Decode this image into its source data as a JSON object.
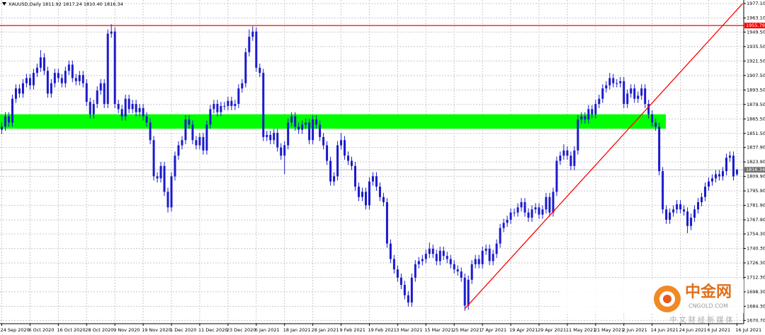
{
  "chart_data": {
    "type": "candlestick",
    "title": "XAUUSD,Daily",
    "quote": "1811.92 1817.24 1810.40 1816.34",
    "color": "#1a1acd",
    "grid": true,
    "ylim": [
      1667.5,
      1980.5
    ],
    "yticks": [
      {
        "value": 1977.1,
        "label": "1977.10"
      },
      {
        "value": 1963.1,
        "label": "1963.10"
      },
      {
        "value": 1949.5,
        "label": "1949.50"
      },
      {
        "value": 1935.5,
        "label": "1935.50"
      },
      {
        "value": 1921.5,
        "label": "1921.50"
      },
      {
        "value": 1907.5,
        "label": "1907.50"
      },
      {
        "value": 1893.5,
        "label": "1893.50"
      },
      {
        "value": 1879.5,
        "label": "1879.50"
      },
      {
        "value": 1865.5,
        "label": "1865.50"
      },
      {
        "value": 1851.5,
        "label": "1851.50"
      },
      {
        "value": 1837.9,
        "label": "1837.90"
      },
      {
        "value": 1823.9,
        "label": "1823.90"
      },
      {
        "value": 1809.9,
        "label": "1809.90"
      },
      {
        "value": 1795.9,
        "label": "1795.90"
      },
      {
        "value": 1781.9,
        "label": "1781.90"
      },
      {
        "value": 1767.9,
        "label": "1767.90"
      },
      {
        "value": 1754.3,
        "label": "1754.30"
      },
      {
        "value": 1740.3,
        "label": "1740.30"
      },
      {
        "value": 1726.3,
        "label": "1726.30"
      },
      {
        "value": 1712.3,
        "label": "1712.30"
      },
      {
        "value": 1698.3,
        "label": "1698.30"
      },
      {
        "value": 1684.3,
        "label": "1684.30"
      },
      {
        "value": 1670.7,
        "label": "1670.70"
      }
    ],
    "categories": [
      "24 Sep 2020",
      null,
      null,
      null,
      null,
      null,
      null,
      null,
      "6 Oct 2020",
      null,
      null,
      null,
      null,
      null,
      null,
      null,
      "16 Oct 2020",
      null,
      null,
      null,
      null,
      null,
      null,
      null,
      "28 Oct 2020",
      null,
      null,
      null,
      null,
      null,
      null,
      null,
      "9 Nov 2020",
      null,
      null,
      null,
      null,
      null,
      null,
      null,
      "19 Nov 2020",
      null,
      null,
      null,
      null,
      null,
      null,
      null,
      "1 Dec 2020",
      null,
      null,
      null,
      null,
      null,
      null,
      null,
      "11 Dec 2020",
      null,
      null,
      null,
      null,
      null,
      null,
      null,
      "23 Dec 2020",
      null,
      null,
      null,
      null,
      null,
      null,
      null,
      "6 Jan 2021",
      null,
      null,
      null,
      null,
      null,
      null,
      null,
      "18 Jan 2021",
      null,
      null,
      null,
      null,
      null,
      null,
      null,
      "28 Jan 2021",
      null,
      null,
      null,
      null,
      null,
      null,
      null,
      "9 Feb 2021",
      null,
      null,
      null,
      null,
      null,
      null,
      null,
      "19 Feb 2021",
      null,
      null,
      null,
      null,
      null,
      null,
      null,
      "3 Mar 2021",
      null,
      null,
      null,
      null,
      null,
      null,
      null,
      "15 Mar 2021",
      null,
      null,
      null,
      null,
      null,
      null,
      null,
      "25 Mar 2021",
      null,
      null,
      null,
      null,
      null,
      null,
      null,
      "7 Apr 2021",
      null,
      null,
      null,
      null,
      null,
      null,
      null,
      "19 Apr 2021",
      null,
      null,
      null,
      null,
      null,
      null,
      null,
      "29 Apr 2021",
      null,
      null,
      null,
      null,
      null,
      null,
      null,
      "11 May 2021",
      null,
      null,
      null,
      null,
      null,
      null,
      null,
      "21 May 2021",
      null,
      null,
      null,
      null,
      null,
      null,
      null,
      "2 Jun 2021",
      null,
      null,
      null,
      null,
      null,
      null,
      null,
      "14 Jun 2021",
      null,
      null,
      null,
      null,
      null,
      null,
      null,
      "24 Jun 2021",
      null,
      null,
      null,
      null,
      null,
      null,
      null,
      "6 Jul 2021",
      null,
      null,
      null,
      null,
      null,
      null,
      null,
      "16 Jul 2021"
    ],
    "open": [
      1855,
      1858,
      1868,
      1862,
      1885,
      1895,
      1890,
      1900,
      1905,
      1898,
      1910,
      1915,
      1925,
      1912,
      1890,
      1900,
      1910,
      1905,
      1900,
      1912,
      1918,
      1905,
      1902,
      1908,
      1900,
      1882,
      1870,
      1880,
      1893,
      1900,
      1880,
      1948,
      1950,
      1880,
      1875,
      1868,
      1885,
      1875,
      1880,
      1872,
      1876,
      1868,
      1862,
      1845,
      1810,
      1808,
      1820,
      1795,
      1780,
      1810,
      1830,
      1840,
      1845,
      1865,
      1860,
      1845,
      1840,
      1848,
      1835,
      1860,
      1875,
      1880,
      1872,
      1878,
      1878,
      1883,
      1878,
      1880,
      1895,
      1900,
      1930,
      1945,
      1950,
      1915,
      1910,
      1848,
      1850,
      1845,
      1852,
      1838,
      1830,
      1840,
      1862,
      1868,
      1858,
      1855,
      1860,
      1862,
      1845,
      1865,
      1860,
      1848,
      1840,
      1825,
      1805,
      1810,
      1840,
      1845,
      1830,
      1825,
      1820,
      1800,
      1790,
      1795,
      1782,
      1805,
      1810,
      1800,
      1790,
      1785,
      1745,
      1730,
      1720,
      1712,
      1705,
      1695,
      1688,
      1712,
      1725,
      1728,
      1730,
      1735,
      1740,
      1735,
      1728,
      1738,
      1733,
      1730,
      1725,
      1720,
      1718,
      1712,
      1685,
      1710,
      1725,
      1730,
      1725,
      1738,
      1740,
      1728,
      1735,
      1745,
      1760,
      1765,
      1768,
      1775,
      1775,
      1780,
      1785,
      1775,
      1770,
      1778,
      1780,
      1773,
      1778,
      1790,
      1775,
      1795,
      1825,
      1830,
      1835,
      1830,
      1820,
      1835,
      1865,
      1868,
      1865,
      1875,
      1870,
      1880,
      1885,
      1895,
      1898,
      1905,
      1900,
      1900,
      1902,
      1880,
      1890,
      1895,
      1885,
      1888,
      1895,
      1880,
      1870,
      1862,
      1858,
      1815,
      1778,
      1768,
      1775,
      1778,
      1783,
      1778,
      1776,
      1762,
      1770,
      1778,
      1785,
      1790,
      1800,
      1805,
      1808,
      1812,
      1810,
      1815,
      1828,
      1830,
      1811.92
    ],
    "high": [
      1862,
      1872,
      1872,
      1889,
      1899,
      1899,
      1904,
      1909,
      1909,
      1914,
      1919,
      1932,
      1929,
      1916,
      1904,
      1914,
      1914,
      1909,
      1916,
      1922,
      1922,
      1909,
      1912,
      1912,
      1904,
      1886,
      1884,
      1897,
      1904,
      1904,
      1952,
      1957,
      1954,
      1884,
      1879,
      1889,
      1889,
      1884,
      1884,
      1880,
      1880,
      1872,
      1866,
      1849,
      1814,
      1824,
      1824,
      1799,
      1814,
      1834,
      1844,
      1849,
      1869,
      1869,
      1864,
      1849,
      1852,
      1852,
      1864,
      1879,
      1884,
      1884,
      1882,
      1882,
      1887,
      1887,
      1884,
      1899,
      1904,
      1934,
      1952,
      1955,
      1954,
      1919,
      1914,
      1854,
      1854,
      1856,
      1856,
      1842,
      1844,
      1866,
      1872,
      1872,
      1862,
      1864,
      1866,
      1866,
      1869,
      1869,
      1864,
      1852,
      1844,
      1829,
      1814,
      1844,
      1852,
      1849,
      1834,
      1829,
      1824,
      1804,
      1799,
      1799,
      1809,
      1814,
      1814,
      1804,
      1794,
      1789,
      1749,
      1734,
      1724,
      1716,
      1709,
      1699,
      1716,
      1729,
      1732,
      1734,
      1739,
      1746,
      1744,
      1739,
      1742,
      1742,
      1737,
      1734,
      1729,
      1724,
      1722,
      1716,
      1714,
      1729,
      1734,
      1734,
      1742,
      1744,
      1744,
      1739,
      1749,
      1764,
      1769,
      1772,
      1779,
      1779,
      1784,
      1789,
      1789,
      1779,
      1782,
      1784,
      1784,
      1782,
      1794,
      1794,
      1799,
      1829,
      1834,
      1841,
      1839,
      1834,
      1839,
      1869,
      1872,
      1872,
      1879,
      1879,
      1884,
      1889,
      1899,
      1902,
      1910,
      1909,
      1904,
      1906,
      1906,
      1894,
      1899,
      1899,
      1892,
      1899,
      1899,
      1884,
      1874,
      1866,
      1862,
      1819,
      1782,
      1779,
      1782,
      1787,
      1787,
      1782,
      1780,
      1774,
      1782,
      1789,
      1794,
      1804,
      1809,
      1812,
      1816,
      1816,
      1819,
      1832,
      1834,
      1834,
      1817.24
    ],
    "low": [
      1851,
      1854,
      1858,
      1858,
      1881,
      1886,
      1886,
      1896,
      1894,
      1894,
      1906,
      1911,
      1908,
      1886,
      1886,
      1896,
      1901,
      1896,
      1896,
      1908,
      1901,
      1898,
      1898,
      1896,
      1878,
      1866,
      1866,
      1876,
      1889,
      1876,
      1876,
      1944,
      1876,
      1871,
      1864,
      1864,
      1871,
      1871,
      1868,
      1868,
      1864,
      1858,
      1841,
      1806,
      1804,
      1804,
      1791,
      1775,
      1776,
      1806,
      1826,
      1836,
      1841,
      1856,
      1841,
      1836,
      1836,
      1831,
      1831,
      1856,
      1871,
      1868,
      1868,
      1874,
      1874,
      1874,
      1874,
      1876,
      1891,
      1896,
      1926,
      1941,
      1911,
      1906,
      1844,
      1844,
      1841,
      1841,
      1834,
      1826,
      1812,
      1836,
      1858,
      1854,
      1851,
      1851,
      1856,
      1841,
      1841,
      1856,
      1844,
      1836,
      1821,
      1801,
      1801,
      1806,
      1836,
      1826,
      1821,
      1816,
      1796,
      1786,
      1786,
      1778,
      1778,
      1801,
      1796,
      1786,
      1781,
      1741,
      1726,
      1716,
      1708,
      1701,
      1691,
      1684,
      1684,
      1708,
      1721,
      1724,
      1726,
      1731,
      1731,
      1724,
      1724,
      1729,
      1726,
      1721,
      1716,
      1714,
      1708,
      1680,
      1681,
      1706,
      1721,
      1721,
      1721,
      1734,
      1724,
      1724,
      1731,
      1741,
      1756,
      1761,
      1764,
      1771,
      1771,
      1776,
      1771,
      1766,
      1766,
      1774,
      1769,
      1769,
      1774,
      1771,
      1771,
      1791,
      1821,
      1826,
      1826,
      1816,
      1816,
      1831,
      1861,
      1861,
      1861,
      1866,
      1866,
      1876,
      1881,
      1891,
      1894,
      1896,
      1896,
      1896,
      1876,
      1876,
      1886,
      1881,
      1881,
      1884,
      1876,
      1866,
      1858,
      1854,
      1811,
      1774,
      1764,
      1764,
      1771,
      1774,
      1774,
      1772,
      1755,
      1758,
      1766,
      1774,
      1781,
      1786,
      1796,
      1801,
      1804,
      1806,
      1806,
      1811,
      1824,
      1806,
      1810.4
    ],
    "close": [
      1858,
      1868,
      1862,
      1885,
      1895,
      1890,
      1900,
      1905,
      1898,
      1910,
      1915,
      1925,
      1912,
      1890,
      1900,
      1910,
      1905,
      1900,
      1912,
      1918,
      1905,
      1902,
      1908,
      1900,
      1882,
      1870,
      1880,
      1893,
      1900,
      1880,
      1948,
      1950,
      1880,
      1875,
      1868,
      1885,
      1875,
      1880,
      1872,
      1876,
      1868,
      1862,
      1845,
      1810,
      1808,
      1820,
      1795,
      1780,
      1810,
      1830,
      1840,
      1845,
      1865,
      1860,
      1845,
      1840,
      1848,
      1835,
      1860,
      1875,
      1880,
      1872,
      1878,
      1878,
      1883,
      1878,
      1880,
      1895,
      1900,
      1930,
      1945,
      1950,
      1915,
      1910,
      1848,
      1850,
      1845,
      1852,
      1838,
      1830,
      1840,
      1862,
      1868,
      1858,
      1855,
      1860,
      1862,
      1845,
      1865,
      1860,
      1848,
      1840,
      1825,
      1805,
      1810,
      1840,
      1845,
      1830,
      1825,
      1820,
      1800,
      1790,
      1795,
      1782,
      1805,
      1810,
      1800,
      1790,
      1785,
      1745,
      1730,
      1720,
      1712,
      1705,
      1695,
      1688,
      1712,
      1725,
      1728,
      1730,
      1735,
      1740,
      1735,
      1728,
      1738,
      1733,
      1730,
      1725,
      1720,
      1718,
      1712,
      1685,
      1710,
      1725,
      1730,
      1725,
      1738,
      1740,
      1728,
      1735,
      1745,
      1760,
      1765,
      1768,
      1775,
      1775,
      1780,
      1785,
      1775,
      1770,
      1778,
      1780,
      1773,
      1778,
      1790,
      1775,
      1795,
      1825,
      1830,
      1835,
      1830,
      1820,
      1835,
      1865,
      1868,
      1865,
      1875,
      1870,
      1880,
      1885,
      1895,
      1898,
      1905,
      1900,
      1900,
      1902,
      1880,
      1890,
      1895,
      1885,
      1888,
      1895,
      1880,
      1870,
      1862,
      1858,
      1815,
      1778,
      1768,
      1775,
      1778,
      1783,
      1778,
      1776,
      1762,
      1770,
      1778,
      1785,
      1790,
      1800,
      1805,
      1808,
      1812,
      1810,
      1815,
      1828,
      1830,
      1810,
      1816.34
    ],
    "zone": {
      "from": 1856,
      "to": 1870,
      "color": "#00ff00"
    },
    "hline": {
      "value": 1955.79,
      "color": "#ff0000"
    },
    "last_price": 1816.34,
    "trendline": {
      "x": [
        131,
        209.6
      ],
      "y": [
        1682,
        1977
      ],
      "color": "#ff0000"
    },
    "watermark": {
      "name": "中金网",
      "site": "CNGOLD.COM",
      "slogan": "中 文 财 经 新 媒 体"
    }
  }
}
